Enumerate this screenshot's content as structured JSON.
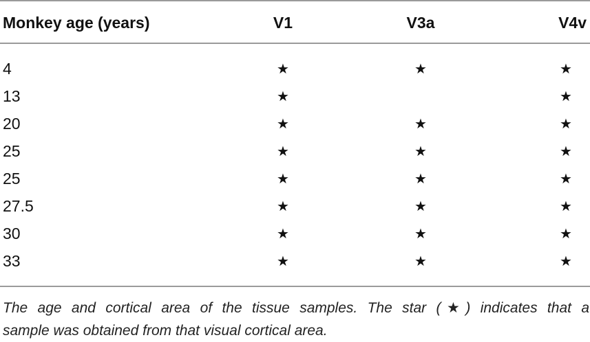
{
  "table": {
    "headers": {
      "age": "Monkey age (years)",
      "v1": "V1",
      "v3a": "V3a",
      "v4v": "V4v"
    },
    "star_symbol": "★",
    "rows": [
      {
        "age": "4",
        "v1": "★",
        "v3a": "★",
        "v4v": "★"
      },
      {
        "age": "13",
        "v1": "★",
        "v3a": "",
        "v4v": "★"
      },
      {
        "age": "20",
        "v1": "★",
        "v3a": "★",
        "v4v": "★"
      },
      {
        "age": "25",
        "v1": "★",
        "v3a": "★",
        "v4v": "★"
      },
      {
        "age": "25",
        "v1": "★",
        "v3a": "★",
        "v4v": "★"
      },
      {
        "age": "27.5",
        "v1": "★",
        "v3a": "★",
        "v4v": "★"
      },
      {
        "age": "30",
        "v1": "★",
        "v3a": "★",
        "v4v": "★"
      },
      {
        "age": "33",
        "v1": "★",
        "v3a": "★",
        "v4v": "★"
      }
    ]
  },
  "caption": {
    "line1": "The age and cortical area of the tissue samples. The star (★) indicates that a",
    "line2": "sample was obtained from that visual cortical area."
  }
}
